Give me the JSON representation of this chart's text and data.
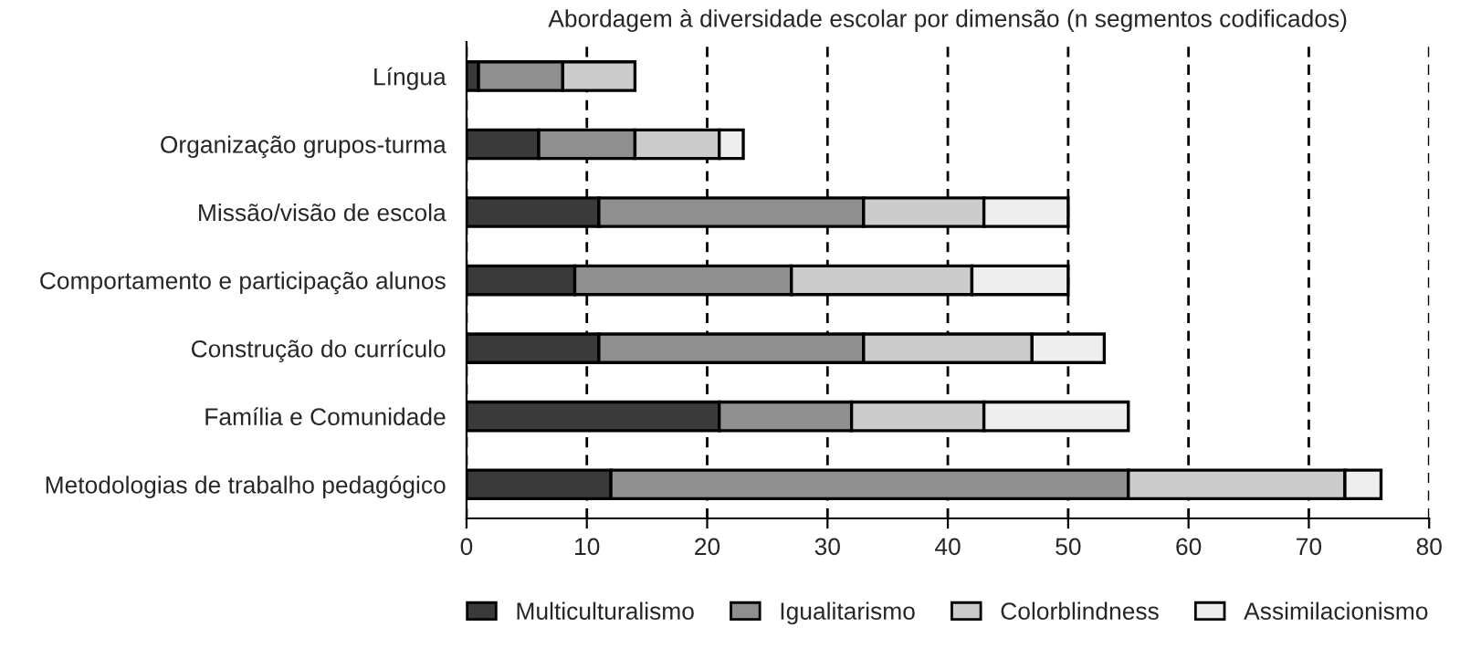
{
  "chart_data": {
    "type": "bar",
    "orientation": "horizontal",
    "stacked": true,
    "title": "Abordagem à diversidade escolar por dimensão (n segmentos codificados)",
    "categories": [
      "Língua",
      "Organização grupos-turma",
      "Missão/visão de escola",
      "Comportamento e participação alunos",
      "Construção do currículo",
      "Família e Comunidade",
      "Metodologias de trabalho pedagógico"
    ],
    "series": [
      {
        "name": "Multiculturalismo",
        "color": "#3a3a3a",
        "values": [
          1,
          6,
          11,
          9,
          11,
          21,
          12
        ]
      },
      {
        "name": "Igualitarismo",
        "color": "#8f8f8f",
        "values": [
          7,
          8,
          22,
          18,
          22,
          11,
          43
        ]
      },
      {
        "name": "Colorblindness",
        "color": "#cccccc",
        "values": [
          6,
          7,
          10,
          15,
          14,
          11,
          18
        ]
      },
      {
        "name": "Assimilacionismo",
        "color": "#eeeeee",
        "values": [
          null,
          2,
          7,
          8,
          6,
          12,
          3
        ]
      }
    ],
    "xlim": [
      0,
      80
    ],
    "xticks": [
      0,
      10,
      20,
      30,
      40,
      50,
      60,
      70,
      80
    ],
    "grid": "x",
    "legend": "bottom"
  }
}
